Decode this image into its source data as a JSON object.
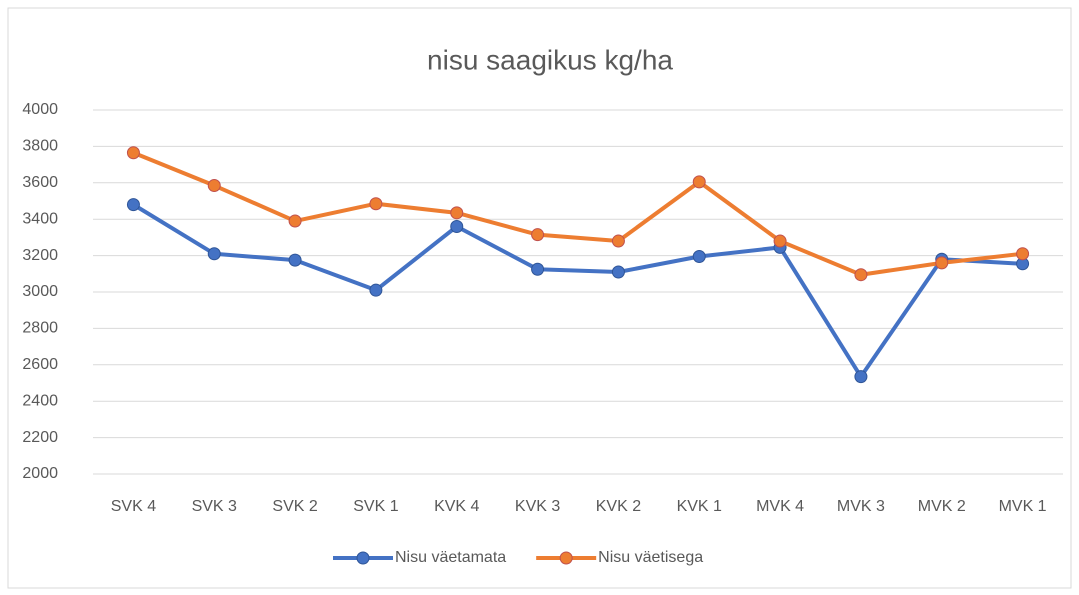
{
  "chart_data": {
    "type": "line",
    "title": "nisu saagikus kg/ha",
    "categories": [
      "SVK 4",
      "SVK 3",
      "SVK 2",
      "SVK 1",
      "KVK 4",
      "KVK 3",
      "KVK 2",
      "KVK 1",
      "MVK 4",
      "MVK 3",
      "MVK 2",
      "MVK 1"
    ],
    "series": [
      {
        "name": "Nisu väetamata",
        "color": "#4472c4",
        "values": [
          3480,
          3210,
          3175,
          3010,
          3360,
          3125,
          3110,
          3195,
          3245,
          2535,
          3180,
          3155
        ]
      },
      {
        "name": "Nisu väetisega",
        "color": "#ed7d31",
        "values": [
          3765,
          3585,
          3390,
          3485,
          3435,
          3315,
          3280,
          3605,
          3280,
          3095,
          3160,
          3210
        ]
      }
    ],
    "ylim": [
      2000,
      4000
    ],
    "yticks": [
      2000,
      2200,
      2400,
      2600,
      2800,
      3000,
      3200,
      3400,
      3600,
      3800,
      4000
    ],
    "grid": true,
    "legend": "bottom"
  }
}
